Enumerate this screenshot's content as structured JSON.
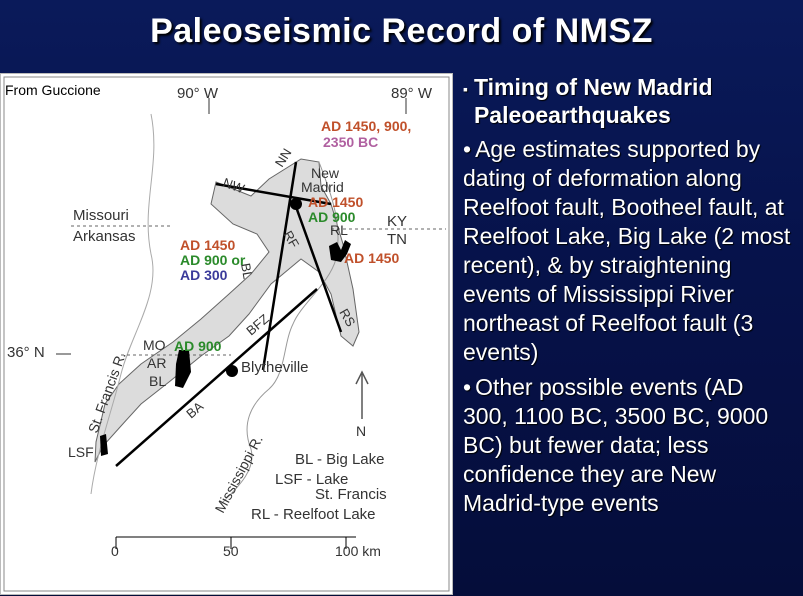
{
  "slide": {
    "title": "Paleoseismic Record of NMSZ"
  },
  "map": {
    "credit": "From Guccione",
    "coords": {
      "lon_west": "90° W",
      "lon_east": "89° W",
      "lat": "36° N"
    },
    "states": {
      "missouri": "Missouri",
      "arkansas": "Arkansas",
      "ky": "KY",
      "tn": "TN",
      "mo": "MO",
      "ar": "AR"
    },
    "places": {
      "new_madrid_1": "New",
      "new_madrid_2": "Madrid",
      "blytheville": "Blytheville",
      "bl": "BL",
      "lsf": "LSF",
      "rl": "RL",
      "st_francis_river": "St. Francis R.",
      "mississippi_river": "Mississippi R."
    },
    "faults": {
      "nn": "NN",
      "nw": "NW",
      "rf": "RF",
      "rs": "RS",
      "bfz": "BFZ",
      "ba": "BA",
      "bl": "BL"
    },
    "dates": {
      "top_1": "AD 1450, 900,",
      "top_2": "2350 BC",
      "nm_1": "AD 1450",
      "nm_2": "AD 900",
      "rl": "AD 1450",
      "bl_fault_1": "AD 1450",
      "bl_fault_2": "AD 900 or",
      "bl_fault_3": "AD 300",
      "bl_lake": "AD 900"
    },
    "legend": {
      "bl": "BL - Big Lake",
      "lsf_1": "LSF - Lake",
      "lsf_2": "St. Francis",
      "rl": "RL - Reelfoot Lake"
    },
    "north": "N",
    "scale": {
      "t0": "0",
      "t1": "50",
      "t2": "100 km"
    },
    "colors": {
      "orange": "#c0502a",
      "green": "#2a8a2a",
      "blue": "#3a3a9a",
      "pink": "#b060a0"
    }
  },
  "bullets": {
    "heading": "Timing of New Madrid Paleoearthquakes",
    "items": [
      "Age estimates supported by dating of deformation along Reelfoot fault, Bootheel fault, at Reelfoot Lake, Big Lake (2 most recent), & by straightening events of Mississippi River northeast of Reelfoot fault (3 events)",
      "Other possible events (AD 300, 1100 BC, 3500 BC, 9000 BC) but fewer data; less confidence they are New Madrid-type events"
    ]
  }
}
